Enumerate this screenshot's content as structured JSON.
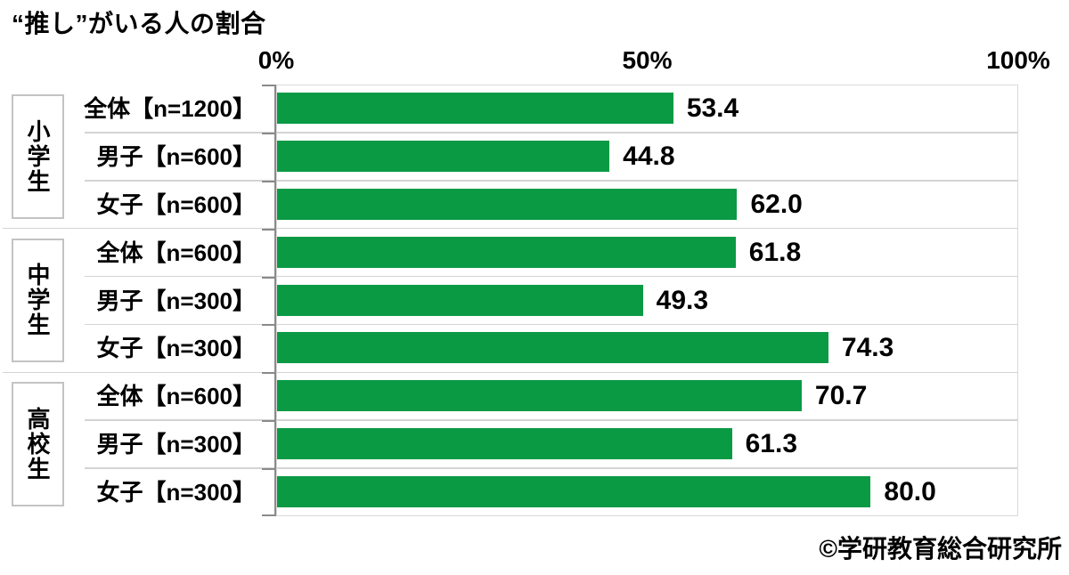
{
  "title": "“推し”がいる人の割合",
  "credit": "©学研教育総合研究所",
  "chart_data": {
    "type": "bar",
    "orientation": "horizontal",
    "unit": "%",
    "bar_color": "#0a9a44",
    "grid": false,
    "x_axis": {
      "min": 0,
      "max": 100,
      "ticks": [
        {
          "value": 0,
          "label": "0%"
        },
        {
          "value": 50,
          "label": "50%"
        },
        {
          "value": 100,
          "label": "100%"
        }
      ]
    },
    "groups": [
      {
        "label": "小学生",
        "rows": [
          {
            "label": "全体【n=1200】",
            "value": 53.4
          },
          {
            "label": "男子【n=600】",
            "value": 44.8
          },
          {
            "label": "女子【n=600】",
            "value": 62.0
          }
        ]
      },
      {
        "label": "中学生",
        "rows": [
          {
            "label": "全体【n=600】",
            "value": 61.8
          },
          {
            "label": "男子【n=300】",
            "value": 49.3
          },
          {
            "label": "女子【n=300】",
            "value": 74.3
          }
        ]
      },
      {
        "label": "高校生",
        "rows": [
          {
            "label": "全体【n=600】",
            "value": 70.7
          },
          {
            "label": "男子【n=300】",
            "value": 61.3
          },
          {
            "label": "女子【n=300】",
            "value": 80.0
          }
        ]
      }
    ]
  }
}
